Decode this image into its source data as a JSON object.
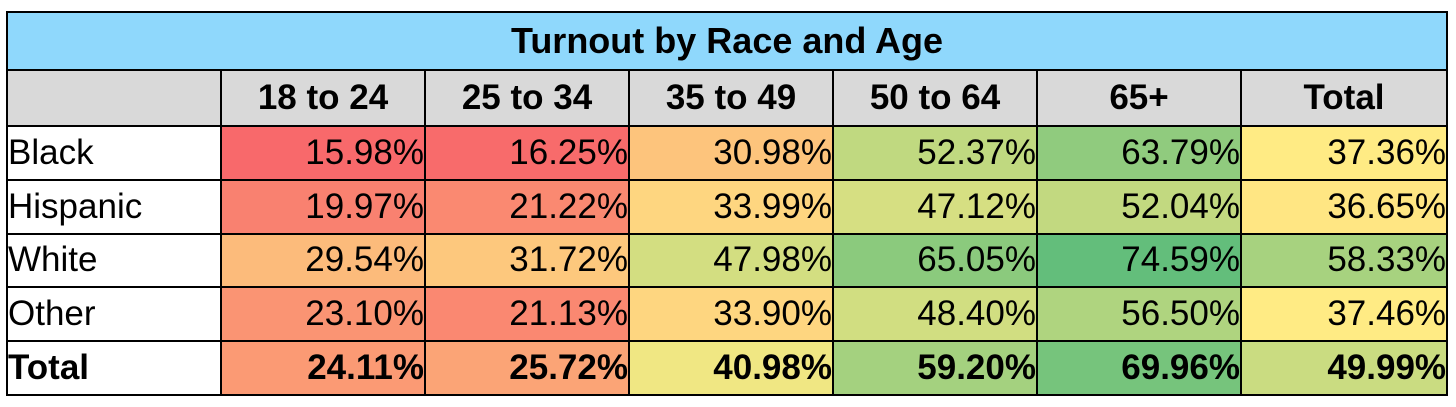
{
  "chart_data": {
    "type": "heatmap",
    "title": "Turnout by Race and Age",
    "columns": [
      "18 to 24",
      "25 to 34",
      "35 to 49",
      "50 to 64",
      "65+",
      "Total"
    ],
    "rows": [
      {
        "label": "Black",
        "values": [
          "15.98%",
          "16.25%",
          "30.98%",
          "52.37%",
          "63.79%",
          "37.36%"
        ]
      },
      {
        "label": "Hispanic",
        "values": [
          "19.97%",
          "21.22%",
          "33.99%",
          "47.12%",
          "52.04%",
          "36.65%"
        ]
      },
      {
        "label": "White",
        "values": [
          "29.54%",
          "31.72%",
          "47.98%",
          "65.05%",
          "74.59%",
          "58.33%"
        ]
      },
      {
        "label": "Other",
        "values": [
          "23.10%",
          "21.13%",
          "33.90%",
          "48.40%",
          "56.50%",
          "37.46%"
        ]
      },
      {
        "label": "Total",
        "values": [
          "24.11%",
          "25.72%",
          "40.98%",
          "59.20%",
          "69.96%",
          "49.99%"
        ]
      }
    ],
    "color_scale": {
      "low": "#f8696b",
      "mid": "#ffeb84",
      "high": "#63be7b"
    }
  }
}
